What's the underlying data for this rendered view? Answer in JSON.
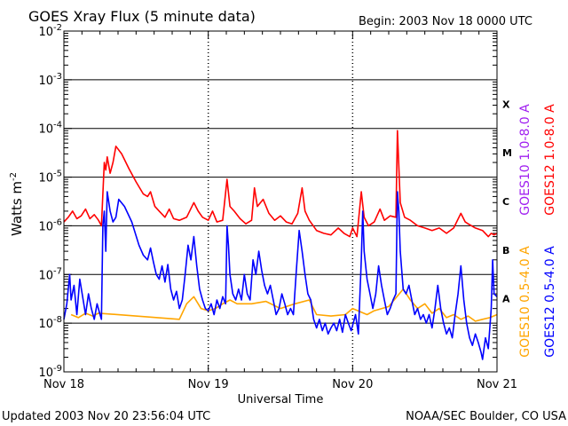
{
  "chart_data": {
    "type": "line",
    "title": "GOES Xray Flux (5 minute data)",
    "begin_label": "Begin:  2003 Nov 18 0000 UTC",
    "xlabel": "Universal Time",
    "ylabel": "Watts m",
    "ylabel_sup": "-2",
    "y_scale": "log",
    "xlim_days": [
      0,
      3
    ],
    "ylim": [
      1e-09,
      0.01
    ],
    "grid": "horizontal lines at each decade, dotted vertical lines at day boundaries",
    "x_ticks": [
      {
        "x": 0,
        "label": "Nov 18"
      },
      {
        "x": 1,
        "label": "Nov 19"
      },
      {
        "x": 2,
        "label": "Nov 20"
      },
      {
        "x": 3,
        "label": "Nov 21"
      }
    ],
    "y_ticks": [
      {
        "exp": -2,
        "base": "10",
        "sup": "-2"
      },
      {
        "exp": -3,
        "base": "10",
        "sup": "-3"
      },
      {
        "exp": -4,
        "base": "10",
        "sup": "-4"
      },
      {
        "exp": -5,
        "base": "10",
        "sup": "-5"
      },
      {
        "exp": -6,
        "base": "10",
        "sup": "-6"
      },
      {
        "exp": -7,
        "base": "10",
        "sup": "-7"
      },
      {
        "exp": -8,
        "base": "10",
        "sup": "-8"
      },
      {
        "exp": -9,
        "base": "10",
        "sup": "-9"
      }
    ],
    "flare_classes": [
      {
        "label": "X",
        "exp": -3.5
      },
      {
        "label": "M",
        "exp": -4.5
      },
      {
        "label": "C",
        "exp": -5.5
      },
      {
        "label": "B",
        "exp": -6.5
      },
      {
        "label": "A",
        "exp": -7.5
      }
    ],
    "legend": [
      {
        "name": "GOES10 1.0-8.0 A",
        "color": "#a020f0"
      },
      {
        "name": "GOES12 1.0-8.0 A",
        "color": "#ff0000"
      },
      {
        "name": "GOES10 0.5-4.0 A",
        "color": "#ffa500"
      },
      {
        "name": "GOES12 0.5-4.0 A",
        "color": "#0000ff"
      }
    ],
    "series": [
      {
        "name": "GOES12 1.0-8.0 A",
        "color": "#ff0000",
        "points": [
          [
            0,
            1.2e-06
          ],
          [
            0.03,
            1.5e-06
          ],
          [
            0.06,
            2e-06
          ],
          [
            0.09,
            1.4e-06
          ],
          [
            0.12,
            1.6e-06
          ],
          [
            0.15,
            2.2e-06
          ],
          [
            0.18,
            1.4e-06
          ],
          [
            0.21,
            1.7e-06
          ],
          [
            0.24,
            1.3e-06
          ],
          [
            0.26,
            1e-06
          ],
          [
            0.28,
            2e-05
          ],
          [
            0.29,
            1.4e-05
          ],
          [
            0.3,
            2.6e-05
          ],
          [
            0.32,
            1.2e-05
          ],
          [
            0.34,
            2e-05
          ],
          [
            0.36,
            4.3e-05
          ],
          [
            0.4,
            3e-05
          ],
          [
            0.45,
            1.5e-05
          ],
          [
            0.5,
            8e-06
          ],
          [
            0.55,
            4.5e-06
          ],
          [
            0.58,
            4e-06
          ],
          [
            0.6,
            5e-06
          ],
          [
            0.63,
            2.5e-06
          ],
          [
            0.66,
            2e-06
          ],
          [
            0.7,
            1.5e-06
          ],
          [
            0.73,
            2.2e-06
          ],
          [
            0.76,
            1.4e-06
          ],
          [
            0.8,
            1.3e-06
          ],
          [
            0.85,
            1.5e-06
          ],
          [
            0.9,
            3e-06
          ],
          [
            0.93,
            2e-06
          ],
          [
            0.96,
            1.5e-06
          ],
          [
            1.0,
            1.3e-06
          ],
          [
            1.03,
            2e-06
          ],
          [
            1.06,
            1.2e-06
          ],
          [
            1.1,
            1.3e-06
          ],
          [
            1.13,
            9e-06
          ],
          [
            1.15,
            2.5e-06
          ],
          [
            1.18,
            2e-06
          ],
          [
            1.22,
            1.4e-06
          ],
          [
            1.26,
            1.1e-06
          ],
          [
            1.3,
            1.3e-06
          ],
          [
            1.32,
            6e-06
          ],
          [
            1.34,
            2.5e-06
          ],
          [
            1.38,
            3.5e-06
          ],
          [
            1.42,
            1.8e-06
          ],
          [
            1.46,
            1.3e-06
          ],
          [
            1.5,
            1.6e-06
          ],
          [
            1.54,
            1.2e-06
          ],
          [
            1.58,
            1.1e-06
          ],
          [
            1.62,
            1.8e-06
          ],
          [
            1.65,
            6e-06
          ],
          [
            1.67,
            2e-06
          ],
          [
            1.7,
            1.3e-06
          ],
          [
            1.75,
            8e-07
          ],
          [
            1.8,
            7e-07
          ],
          [
            1.85,
            6.5e-07
          ],
          [
            1.9,
            9e-07
          ],
          [
            1.94,
            7e-07
          ],
          [
            1.98,
            6e-07
          ],
          [
            2.0,
            9e-07
          ],
          [
            2.03,
            6e-07
          ],
          [
            2.06,
            5e-06
          ],
          [
            2.08,
            1.5e-06
          ],
          [
            2.11,
            1e-06
          ],
          [
            2.15,
            1.2e-06
          ],
          [
            2.19,
            2.2e-06
          ],
          [
            2.22,
            1.3e-06
          ],
          [
            2.26,
            1.6e-06
          ],
          [
            2.3,
            1.5e-06
          ],
          [
            2.31,
            9e-05
          ],
          [
            2.33,
            3e-06
          ],
          [
            2.36,
            1.5e-06
          ],
          [
            2.4,
            1.3e-06
          ],
          [
            2.45,
            1e-06
          ],
          [
            2.5,
            9e-07
          ],
          [
            2.55,
            8e-07
          ],
          [
            2.6,
            9e-07
          ],
          [
            2.65,
            7e-07
          ],
          [
            2.7,
            9e-07
          ],
          [
            2.75,
            1.8e-06
          ],
          [
            2.78,
            1.2e-06
          ],
          [
            2.8,
            1.1e-06
          ],
          [
            2.85,
            9e-07
          ],
          [
            2.9,
            8e-07
          ],
          [
            2.94,
            6e-07
          ],
          [
            2.96,
            7e-07
          ],
          [
            2.98,
            6.5e-07
          ],
          [
            3.0,
            7e-07
          ]
        ]
      },
      {
        "name": "GOES10 0.5-4.0 A",
        "color": "#ffa500",
        "points": [
          [
            0.05,
            1.5e-08
          ],
          [
            0.1,
            1.3e-08
          ],
          [
            0.15,
            1.6e-08
          ],
          [
            0.2,
            1.4e-08
          ],
          [
            0.24,
            1.6e-08
          ],
          [
            0.8,
            1.2e-08
          ],
          [
            0.85,
            2.5e-08
          ],
          [
            0.9,
            3.5e-08
          ],
          [
            0.95,
            2e-08
          ],
          [
            1.0,
            1.8e-08
          ],
          [
            1.05,
            2e-08
          ],
          [
            1.1,
            2.5e-08
          ],
          [
            1.15,
            3e-08
          ],
          [
            1.2,
            2.5e-08
          ],
          [
            1.3,
            2.5e-08
          ],
          [
            1.4,
            2.8e-08
          ],
          [
            1.5,
            2e-08
          ],
          [
            1.6,
            2.5e-08
          ],
          [
            1.7,
            3e-08
          ],
          [
            1.75,
            1.5e-08
          ],
          [
            1.85,
            1.4e-08
          ],
          [
            1.95,
            1.5e-08
          ],
          [
            2.0,
            2e-08
          ],
          [
            2.1,
            1.5e-08
          ],
          [
            2.15,
            1.8e-08
          ],
          [
            2.25,
            2.2e-08
          ],
          [
            2.35,
            5e-08
          ],
          [
            2.4,
            3e-08
          ],
          [
            2.45,
            2e-08
          ],
          [
            2.5,
            2.5e-08
          ],
          [
            2.55,
            1.6e-08
          ],
          [
            2.6,
            2e-08
          ],
          [
            2.65,
            1.3e-08
          ],
          [
            2.7,
            1.5e-08
          ],
          [
            2.75,
            1.2e-08
          ],
          [
            2.8,
            1.4e-08
          ],
          [
            2.85,
            1.1e-08
          ],
          [
            2.9,
            1.2e-08
          ],
          [
            2.95,
            1.3e-08
          ],
          [
            3.0,
            1.5e-08
          ]
        ]
      },
      {
        "name": "GOES12 0.5-4.0 A",
        "color": "#0000ff",
        "points": [
          [
            0,
            1.2e-08
          ],
          [
            0.02,
            2.5e-08
          ],
          [
            0.04,
            1e-07
          ],
          [
            0.05,
            3e-08
          ],
          [
            0.07,
            6e-08
          ],
          [
            0.09,
            1.5e-08
          ],
          [
            0.11,
            8e-08
          ],
          [
            0.13,
            3.5e-08
          ],
          [
            0.15,
            1.5e-08
          ],
          [
            0.17,
            4e-08
          ],
          [
            0.19,
            2e-08
          ],
          [
            0.21,
            1.2e-08
          ],
          [
            0.23,
            2.5e-08
          ],
          [
            0.25,
            1.5e-08
          ],
          [
            0.26,
            1.2e-08
          ],
          [
            0.27,
            1e-06
          ],
          [
            0.28,
            2e-06
          ],
          [
            0.29,
            3e-07
          ],
          [
            0.3,
            5e-06
          ],
          [
            0.32,
            2e-06
          ],
          [
            0.34,
            1.2e-06
          ],
          [
            0.36,
            1.5e-06
          ],
          [
            0.38,
            3.5e-06
          ],
          [
            0.42,
            2.5e-06
          ],
          [
            0.47,
            1.2e-06
          ],
          [
            0.52,
            4e-07
          ],
          [
            0.55,
            2.5e-07
          ],
          [
            0.58,
            2e-07
          ],
          [
            0.6,
            3.5e-07
          ],
          [
            0.62,
            1.8e-07
          ],
          [
            0.64,
            1e-07
          ],
          [
            0.66,
            8e-08
          ],
          [
            0.68,
            1.5e-07
          ],
          [
            0.7,
            7e-08
          ],
          [
            0.72,
            1.6e-07
          ],
          [
            0.74,
            5e-08
          ],
          [
            0.76,
            3e-08
          ],
          [
            0.78,
            4.5e-08
          ],
          [
            0.8,
            2e-08
          ],
          [
            0.82,
            3e-08
          ],
          [
            0.84,
            1e-07
          ],
          [
            0.86,
            4e-07
          ],
          [
            0.88,
            2e-07
          ],
          [
            0.9,
            6e-07
          ],
          [
            0.92,
            1.5e-07
          ],
          [
            0.94,
            5e-08
          ],
          [
            0.96,
            3e-08
          ],
          [
            0.98,
            2e-08
          ],
          [
            1.0,
            1.8e-08
          ],
          [
            1.02,
            2.5e-08
          ],
          [
            1.04,
            1.5e-08
          ],
          [
            1.06,
            3e-08
          ],
          [
            1.08,
            2e-08
          ],
          [
            1.1,
            3.5e-08
          ],
          [
            1.12,
            2.5e-08
          ],
          [
            1.13,
            1e-06
          ],
          [
            1.14,
            4e-07
          ],
          [
            1.15,
            1e-07
          ],
          [
            1.17,
            4e-08
          ],
          [
            1.19,
            3e-08
          ],
          [
            1.21,
            5e-08
          ],
          [
            1.23,
            3e-08
          ],
          [
            1.25,
            1e-07
          ],
          [
            1.27,
            4e-08
          ],
          [
            1.29,
            3e-08
          ],
          [
            1.31,
            2e-07
          ],
          [
            1.33,
            1e-07
          ],
          [
            1.35,
            3e-07
          ],
          [
            1.37,
            1.2e-07
          ],
          [
            1.39,
            6e-08
          ],
          [
            1.41,
            4e-08
          ],
          [
            1.43,
            6e-08
          ],
          [
            1.45,
            3e-08
          ],
          [
            1.47,
            1.5e-08
          ],
          [
            1.49,
            2e-08
          ],
          [
            1.51,
            4e-08
          ],
          [
            1.53,
            2.5e-08
          ],
          [
            1.55,
            1.5e-08
          ],
          [
            1.57,
            2e-08
          ],
          [
            1.59,
            1.5e-08
          ],
          [
            1.61,
            1.2e-07
          ],
          [
            1.63,
            8e-07
          ],
          [
            1.65,
            3e-07
          ],
          [
            1.67,
            1e-07
          ],
          [
            1.69,
            4e-08
          ],
          [
            1.71,
            3e-08
          ],
          [
            1.73,
            1.2e-08
          ],
          [
            1.75,
            8e-09
          ],
          [
            1.77,
            1.2e-08
          ],
          [
            1.79,
            7e-09
          ],
          [
            1.81,
            1e-08
          ],
          [
            1.83,
            6e-09
          ],
          [
            1.85,
            8e-09
          ],
          [
            1.87,
            1e-08
          ],
          [
            1.89,
            7e-09
          ],
          [
            1.91,
            1.2e-08
          ],
          [
            1.93,
            6.5e-09
          ],
          [
            1.95,
            1.5e-08
          ],
          [
            1.97,
            1e-08
          ],
          [
            1.99,
            7e-09
          ],
          [
            2.0,
            9e-09
          ],
          [
            2.02,
            1.5e-08
          ],
          [
            2.04,
            6e-09
          ],
          [
            2.06,
            2e-07
          ],
          [
            2.07,
            2e-06
          ],
          [
            2.08,
            3e-07
          ],
          [
            2.1,
            8e-08
          ],
          [
            2.12,
            4e-08
          ],
          [
            2.14,
            2e-08
          ],
          [
            2.16,
            4e-08
          ],
          [
            2.18,
            1.5e-07
          ],
          [
            2.2,
            6e-08
          ],
          [
            2.22,
            3e-08
          ],
          [
            2.24,
            1.5e-08
          ],
          [
            2.26,
            2e-08
          ],
          [
            2.28,
            3e-08
          ],
          [
            2.3,
            4e-08
          ],
          [
            2.31,
            5e-06
          ],
          [
            2.32,
            2e-06
          ],
          [
            2.33,
            3e-07
          ],
          [
            2.35,
            5e-08
          ],
          [
            2.37,
            4e-08
          ],
          [
            2.39,
            6e-08
          ],
          [
            2.41,
            3e-08
          ],
          [
            2.43,
            1.5e-08
          ],
          [
            2.45,
            2e-08
          ],
          [
            2.47,
            1.2e-08
          ],
          [
            2.49,
            1.5e-08
          ],
          [
            2.51,
            1e-08
          ],
          [
            2.53,
            1.5e-08
          ],
          [
            2.55,
            8e-09
          ],
          [
            2.57,
            2e-08
          ],
          [
            2.59,
            6e-08
          ],
          [
            2.61,
            2e-08
          ],
          [
            2.63,
            1e-08
          ],
          [
            2.65,
            6e-09
          ],
          [
            2.67,
            8e-09
          ],
          [
            2.69,
            5e-09
          ],
          [
            2.71,
            1.5e-08
          ],
          [
            2.73,
            4e-08
          ],
          [
            2.75,
            1.5e-07
          ],
          [
            2.77,
            3e-08
          ],
          [
            2.79,
            1e-08
          ],
          [
            2.81,
            5e-09
          ],
          [
            2.83,
            3.5e-09
          ],
          [
            2.85,
            6e-09
          ],
          [
            2.87,
            4e-09
          ],
          [
            2.89,
            2.5e-09
          ],
          [
            2.9,
            1.8e-09
          ],
          [
            2.92,
            5e-09
          ],
          [
            2.94,
            3e-09
          ],
          [
            2.96,
            2e-08
          ],
          [
            2.97,
            2e-07
          ],
          [
            2.98,
            4e-08
          ],
          [
            3.0,
            3.5e-08
          ]
        ]
      }
    ]
  },
  "footer": {
    "updated": "Updated 2003 Nov 20 23:56:04 UTC",
    "source": "NOAA/SEC Boulder, CO USA"
  }
}
